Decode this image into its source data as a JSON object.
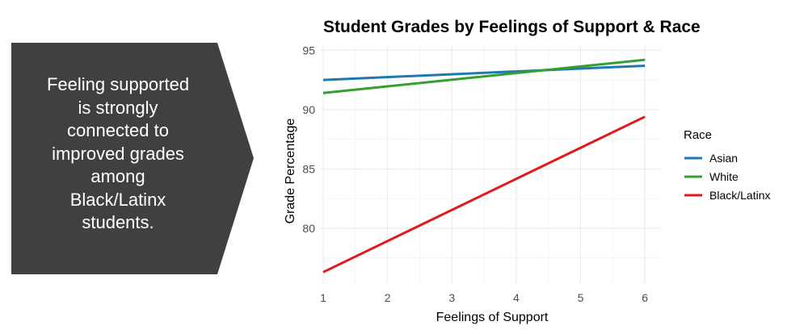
{
  "callout": {
    "text": "Feeling supported\nis strongly\nconnected to\nimproved grades\namong\nBlack/Latinx\nstudents.",
    "background": "#404040"
  },
  "chart_data": {
    "type": "line",
    "title": "Student Grades by Feelings of Support & Race",
    "xlabel": "Feelings of Support",
    "ylabel": "Grade Percentage",
    "x": [
      1,
      6
    ],
    "xticks": [
      1,
      2,
      3,
      4,
      5,
      6
    ],
    "yticks": [
      80,
      85,
      90,
      95
    ],
    "xlim": [
      0.95,
      6.25
    ],
    "ylim": [
      75.3,
      95.5
    ],
    "grid": true,
    "legend": {
      "title": "Race",
      "position": "right"
    },
    "series": [
      {
        "name": "Asian",
        "values": [
          92.5,
          93.7
        ],
        "color": "#1f78b4"
      },
      {
        "name": "White",
        "values": [
          91.4,
          94.2
        ],
        "color": "#33a02c"
      },
      {
        "name": "Black/Latinx",
        "values": [
          76.3,
          89.4
        ],
        "color": "#e31a1c"
      }
    ]
  }
}
